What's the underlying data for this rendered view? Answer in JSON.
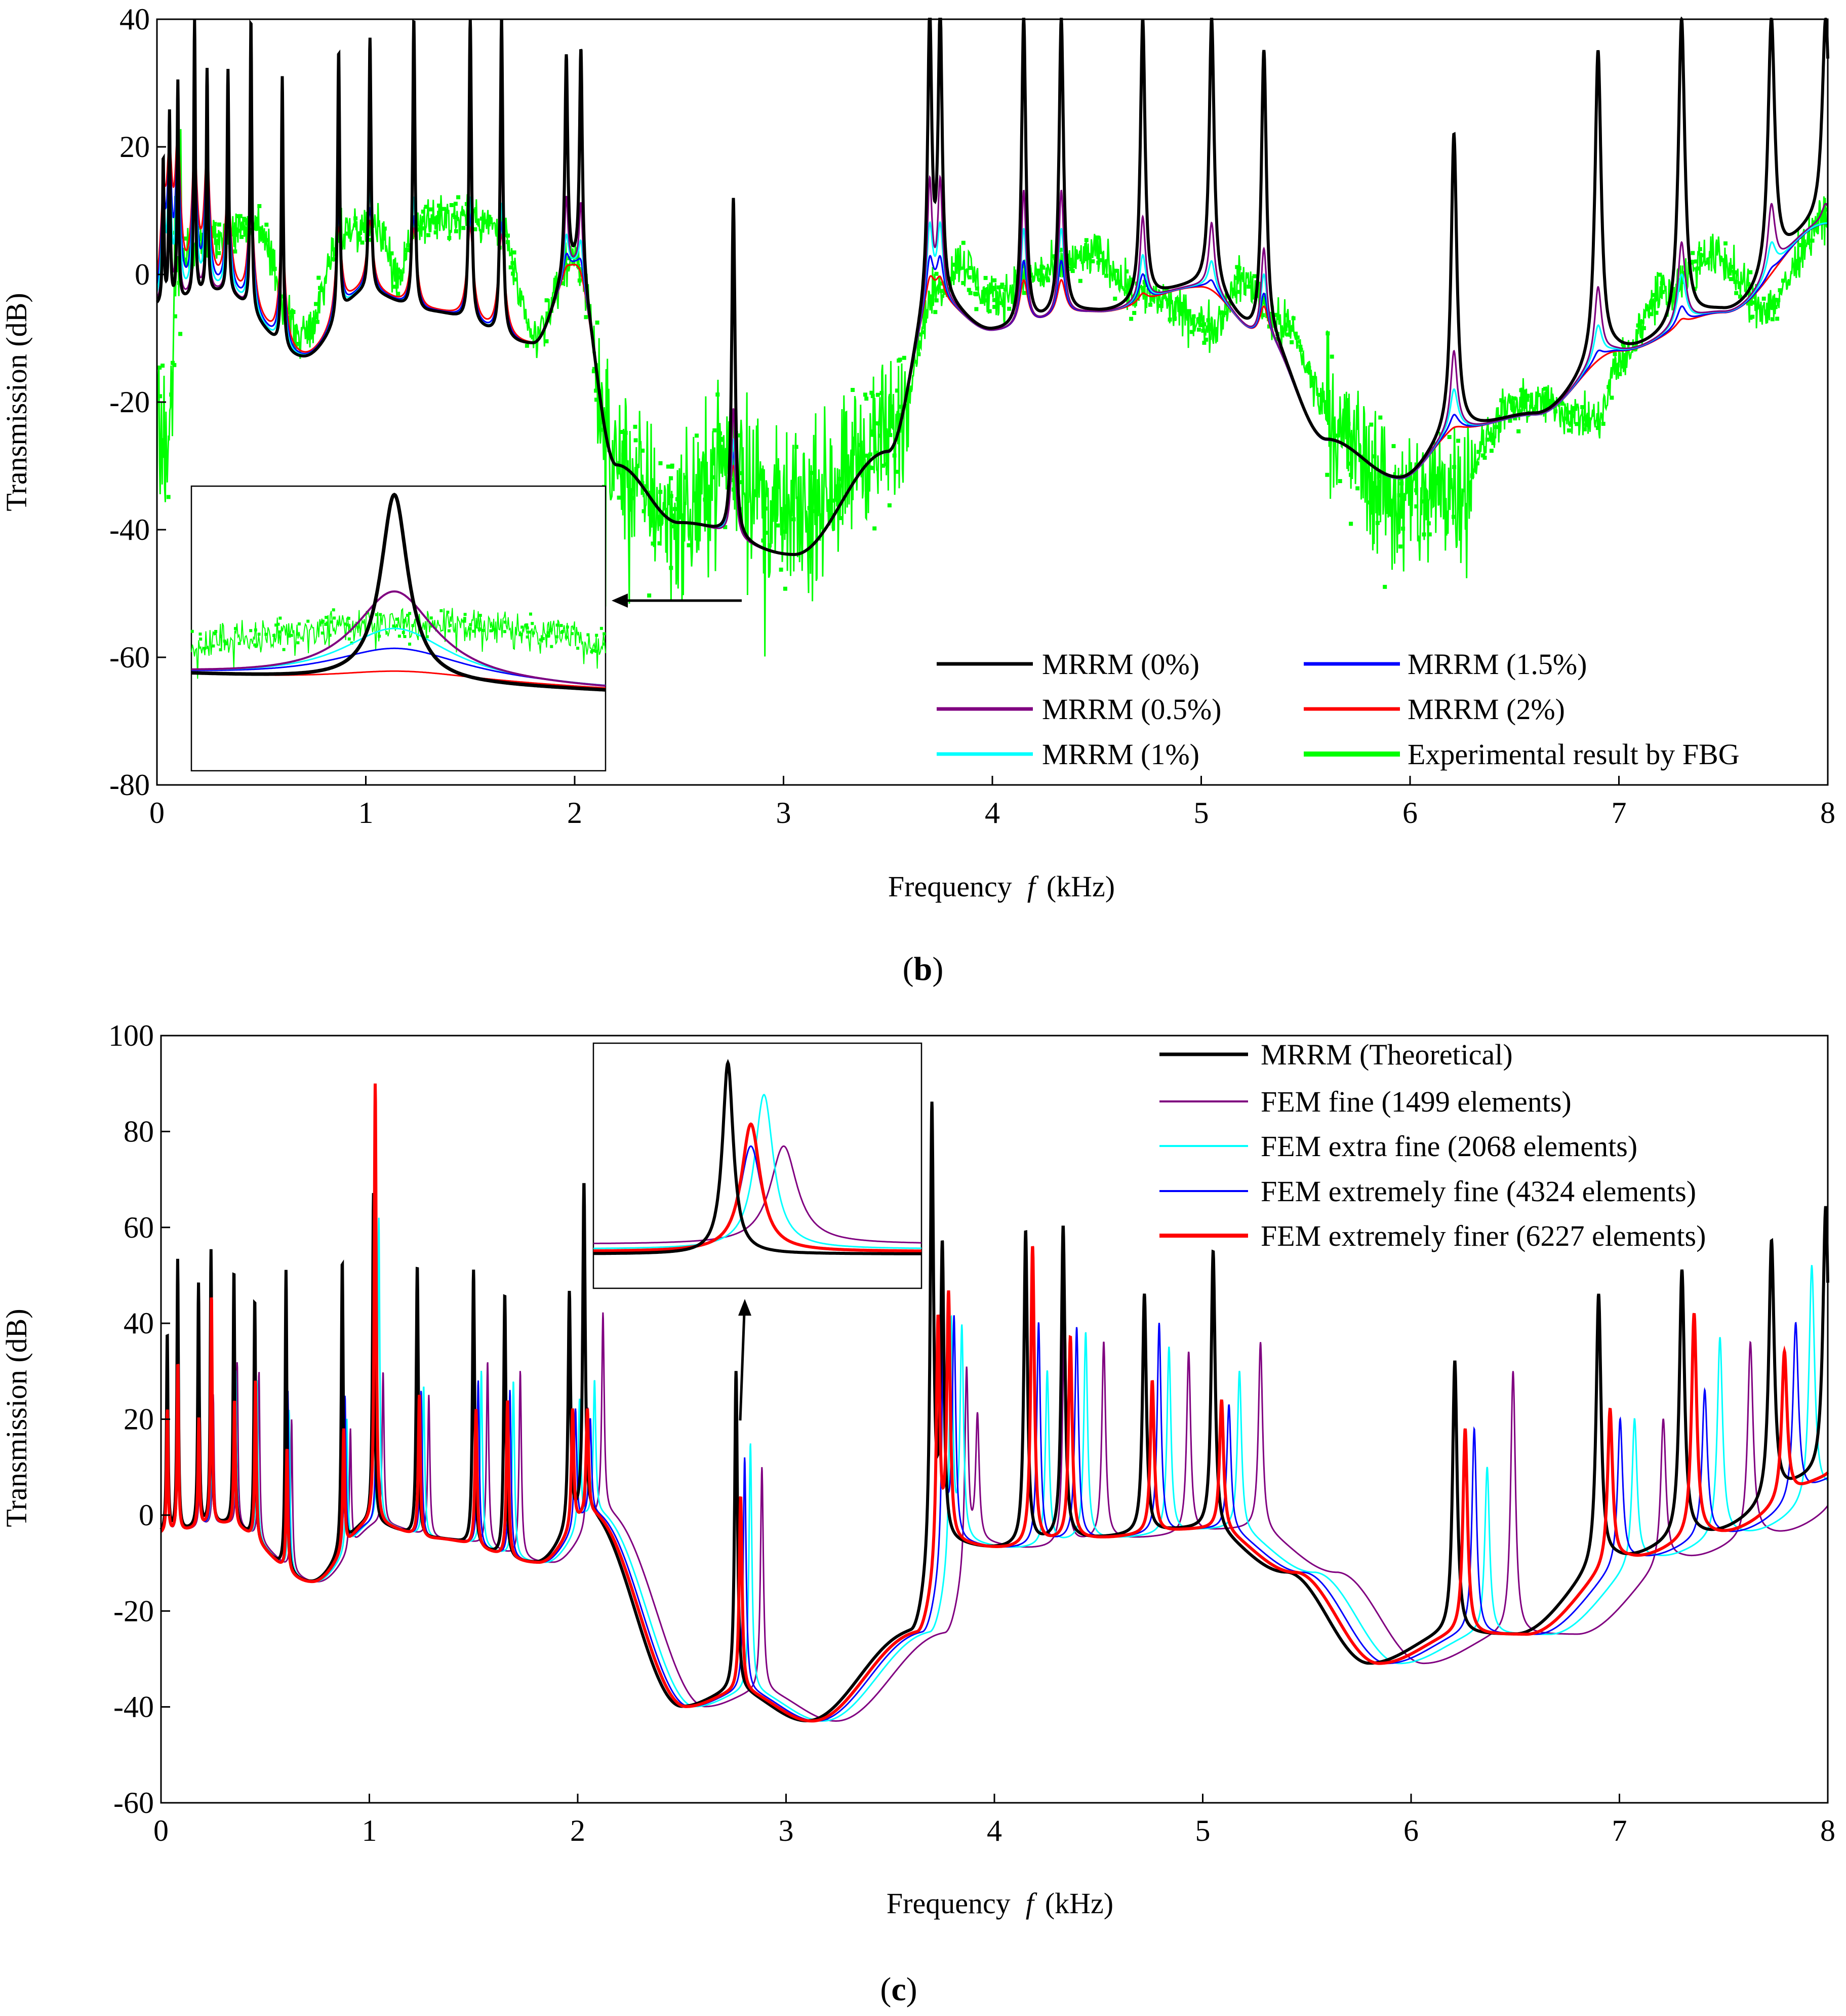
{
  "chart_data": [
    {
      "id": "b",
      "type": "line",
      "caption_letter": "b",
      "xlabel_prefix": "Frequency",
      "xlabel_var": "f",
      "xlabel_unit": "(kHz)",
      "ylabel": "Transmission (dB)",
      "xlim": [
        0,
        8
      ],
      "ylim": [
        -80,
        40
      ],
      "xticks": [
        0,
        1,
        2,
        3,
        4,
        5,
        6,
        7,
        8
      ],
      "yticks": [
        40,
        20,
        0,
        -20,
        -40,
        -60,
        -80
      ],
      "peaks": [
        0.03,
        0.06,
        0.1,
        0.18,
        0.24,
        0.34,
        0.45,
        0.6,
        0.87,
        1.02,
        1.23,
        1.5,
        1.65,
        1.96,
        2.03,
        2.76,
        3.7,
        3.75,
        4.15,
        4.33,
        4.72,
        5.05,
        5.3,
        6.21,
        6.9,
        7.3,
        7.73,
        7.99
      ],
      "series": [
        {
          "name": "MRRM (0%)",
          "color": "#000000",
          "peak_heights": [
            18,
            25,
            30,
            40,
            32,
            32,
            40,
            31,
            35,
            37,
            40,
            40,
            40,
            34,
            35,
            12,
            40,
            40,
            40,
            40,
            40,
            40,
            35,
            22,
            35,
            40,
            40,
            40
          ]
        },
        {
          "name": "MRRM (0.5%)",
          "color": "#800080",
          "peak_heights": [
            14,
            20,
            24,
            28,
            26,
            22,
            24,
            12,
            18,
            19,
            20,
            20,
            19,
            12,
            11,
            -21,
            14,
            14,
            13,
            13,
            9,
            8,
            4,
            -12,
            -2,
            5,
            11,
            11
          ]
        },
        {
          "name": "MRRM (1%)",
          "color": "#00FFFF",
          "peak_heights": [
            12,
            18,
            22,
            24,
            22,
            18,
            18,
            10,
            12,
            13,
            12,
            12,
            11,
            6,
            5,
            -26,
            7,
            7,
            7,
            7,
            3,
            2,
            0,
            -18,
            -8,
            0,
            5,
            5
          ]
        },
        {
          "name": "MRRM (1.5%)",
          "color": "#0000FF",
          "peak_heights": [
            10,
            16,
            20,
            20,
            19,
            14,
            14,
            8,
            9,
            10,
            9,
            9,
            8,
            3,
            2,
            -28,
            2,
            2,
            2,
            2,
            0,
            -1,
            -3,
            -22,
            -12,
            -5,
            1,
            1
          ]
        },
        {
          "name": "MRRM (2%)",
          "color": "#FF0000",
          "peak_heights": [
            8,
            14,
            18,
            17,
            17,
            12,
            11,
            6,
            7,
            8,
            7,
            7,
            6,
            1,
            0,
            -30,
            -1,
            -1,
            -1,
            -1,
            -3,
            -4,
            -5,
            -24,
            -14,
            -7,
            -2,
            -2
          ]
        },
        {
          "name": "Experimental result by FBG",
          "color": "#00FF00"
        }
      ],
      "inset_note": "zoom of peak near 2.76 kHz"
    },
    {
      "id": "c",
      "type": "line",
      "caption_letter": "c",
      "xlabel_prefix": "Frequency",
      "xlabel_var": "f",
      "xlabel_unit": "(kHz)",
      "ylabel": "Transmission (dB)",
      "xlim": [
        0,
        8
      ],
      "ylim": [
        -60,
        100
      ],
      "xticks": [
        0,
        1,
        2,
        3,
        4,
        5,
        6,
        7,
        8
      ],
      "yticks": [
        100,
        80,
        60,
        40,
        20,
        0,
        -20,
        -40,
        -60
      ],
      "series": [
        {
          "name": "MRRM (Theoretical)",
          "color": "#000000",
          "shift": 1.0,
          "peak_heights": [
            38,
            53,
            48,
            55,
            51,
            45,
            51,
            53,
            67,
            52,
            51,
            46,
            46,
            69,
            30,
            84,
            54,
            59,
            60,
            46,
            55,
            32,
            46,
            51,
            57,
            64
          ]
        },
        {
          "name": "FEM fine (1499 elements)",
          "color": "#800080",
          "shift": 1.045,
          "peak_heights": [
            20,
            30,
            20,
            25,
            32,
            30,
            20,
            18,
            30,
            25,
            32,
            30,
            22,
            42,
            10,
            30,
            20,
            45,
            36,
            34,
            36,
            30,
            20,
            36,
            34,
            14
          ]
        },
        {
          "name": "FEM extra fine (2068 elements)",
          "color": "#00FFFF",
          "shift": 1.025,
          "peak_heights": [
            22,
            32,
            22,
            27,
            30,
            28,
            22,
            20,
            62,
            27,
            30,
            28,
            24,
            28,
            15,
            40,
            38,
            30,
            38,
            35,
            30,
            10,
            20,
            37,
            52,
            12
          ]
        },
        {
          "name": "FEM extremely fine (4324 elements)",
          "color": "#0000FF",
          "shift": 1.015,
          "peak_heights": [
            21,
            30,
            21,
            26,
            28,
            26,
            26,
            25,
            34,
            26,
            28,
            26,
            22,
            20,
            12,
            38,
            40,
            40,
            39,
            40,
            23,
            18,
            20,
            26,
            40,
            30
          ]
        },
        {
          "name": "FEM extremely finer (6227 elements)",
          "color": "#FF0000",
          "shift": 1.008,
          "peak_heights": [
            22,
            32,
            20,
            46,
            24,
            28,
            14,
            18,
            90,
            25,
            22,
            24,
            22,
            22,
            4,
            40,
            45,
            56,
            37,
            28,
            24,
            18,
            22,
            42,
            34,
            20
          ]
        }
      ],
      "inset_note": "zoom of peak near 2.76 kHz"
    }
  ]
}
